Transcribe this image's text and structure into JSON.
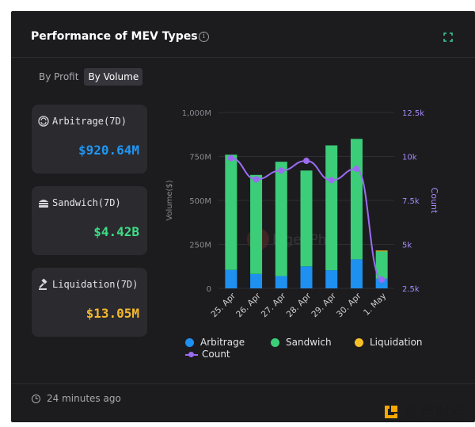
{
  "header": {
    "title": "Performance of MEV Types"
  },
  "toggle": {
    "options": [
      "By Profit",
      "By Volume"
    ],
    "active": "By Volume"
  },
  "cards": [
    {
      "label": "Arbitrage(7D)",
      "value": "$920.64M",
      "color": "#2196f3",
      "icon": "arbitrage-icon"
    },
    {
      "label": "Sandwich(7D)",
      "value": "$4.42B",
      "color": "#3ddc84",
      "icon": "sandwich-icon"
    },
    {
      "label": "Liquidation(7D)",
      "value": "$13.05M",
      "color": "#f5b82e",
      "icon": "gavel-icon"
    }
  ],
  "watermark": "EigenPhi",
  "chart_data": {
    "type": "bar",
    "categories": [
      "25. Apr",
      "26. Apr",
      "27. Apr",
      "28. Apr",
      "29. Apr",
      "30. Apr",
      "1. May"
    ],
    "series": [
      {
        "name": "Arbitrage",
        "type": "bar",
        "stack": "volume",
        "color": "#1e90f0",
        "values": [
          105,
          82,
          70,
          125,
          103,
          165,
          55
        ]
      },
      {
        "name": "Sandwich",
        "type": "bar",
        "stack": "volume",
        "color": "#3ccd78",
        "values": [
          655,
          563,
          650,
          545,
          710,
          685,
          155
        ]
      },
      {
        "name": "Liquidation",
        "type": "bar",
        "stack": "volume",
        "color": "#f5c028",
        "values": [
          0,
          0,
          0,
          0,
          0,
          0,
          5
        ]
      },
      {
        "name": "Count",
        "type": "line",
        "axis": "right",
        "color": "#9b6cf2",
        "values": [
          9900,
          8700,
          9200,
          9750,
          8650,
          9300,
          3000
        ]
      }
    ],
    "ylabel": "Volume($)",
    "y2label": "Count",
    "ylim": [
      0,
      1000
    ],
    "y_ticks": [
      "0",
      "250M",
      "500M",
      "750M",
      "1,000M"
    ],
    "y2lim": [
      2500,
      12500
    ],
    "y2_ticks": [
      "2.5k",
      "5k",
      "7.5k",
      "10k",
      "12.5k"
    ]
  },
  "footer": {
    "updated": "24 minutes ago"
  },
  "brand": {
    "name": "金色财经"
  }
}
